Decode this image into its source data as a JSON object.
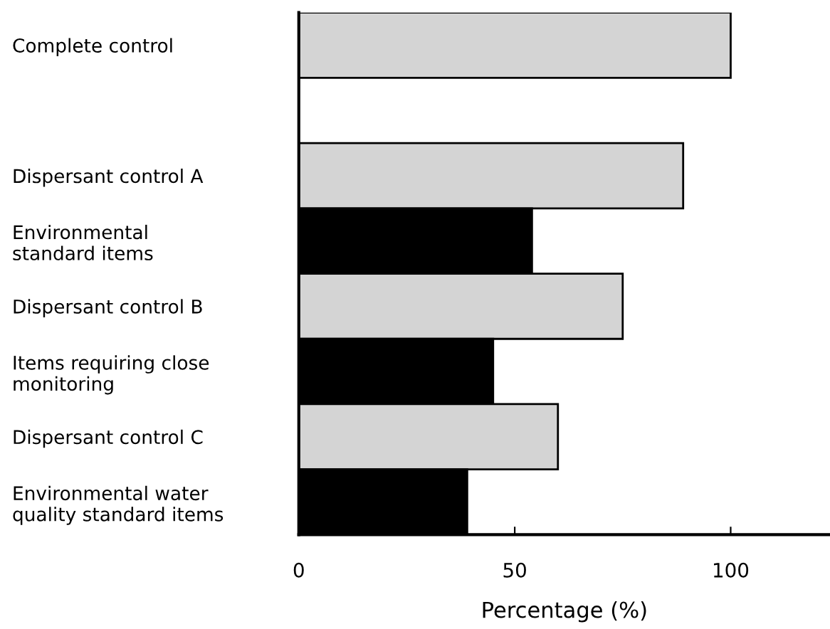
{
  "chart_data": {
    "type": "bar",
    "orientation": "horizontal",
    "xlabel": "Percentage (%)",
    "categories": [
      "Complete control",
      null,
      "Dispersant control A",
      "Environmental\nstandard items",
      "Dispersant control B",
      "Items requiring close\nmonitoring",
      "Dispersant control C",
      "Environmental water\nquality standard items"
    ],
    "values": [
      100,
      null,
      89,
      54,
      75,
      45,
      60,
      39
    ],
    "colors": [
      "#d4d4d4",
      "#d4d4d4",
      "#d4d4d4",
      "#000000",
      "#d4d4d4",
      "#000000",
      "#d4d4d4",
      "#000000"
    ],
    "xlim": [
      0,
      123
    ],
    "xticks": [
      0,
      50,
      100
    ],
    "grid": false,
    "legend": false
  }
}
